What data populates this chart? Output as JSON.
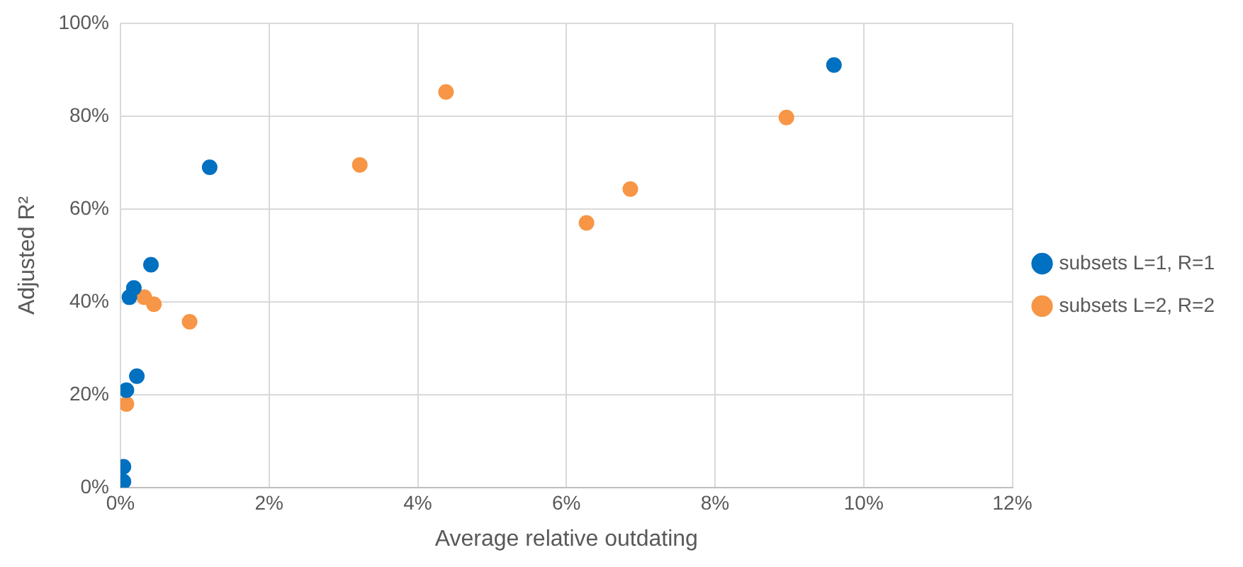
{
  "chart_data": {
    "type": "scatter",
    "xlabel": "Average relative outdating",
    "ylabel": "Adjusted R²",
    "xlim": [
      0,
      12
    ],
    "xticks": [
      {
        "value": 0,
        "label": "0%"
      },
      {
        "value": 2,
        "label": "2%"
      },
      {
        "value": 4,
        "label": "4%"
      },
      {
        "value": 6,
        "label": "6%"
      },
      {
        "value": 8,
        "label": "8%"
      },
      {
        "value": 10,
        "label": "10%"
      },
      {
        "value": 12,
        "label": "12%"
      }
    ],
    "ylim": [
      0,
      100
    ],
    "yticks": [
      {
        "value": 0,
        "label": "0%"
      },
      {
        "value": 20,
        "label": "20%"
      },
      {
        "value": 40,
        "label": "40%"
      },
      {
        "value": 60,
        "label": "60%"
      },
      {
        "value": 80,
        "label": "80%"
      },
      {
        "value": 100,
        "label": "100%"
      }
    ],
    "grid": true,
    "legend": "right",
    "marker": "circle",
    "series": [
      {
        "name": "subsets L=1, R=1",
        "color": "#0070c0",
        "x": [
          0.04,
          0.04,
          0.08,
          0.12,
          0.18,
          0.22,
          0.41,
          1.2,
          9.6
        ],
        "values": [
          4.5,
          1.3,
          21,
          41,
          43,
          24,
          48,
          69,
          91
        ]
      },
      {
        "name": "subsets L=2, R=2",
        "color": "#f79646",
        "x": [
          0.08,
          0.32,
          0.45,
          0.93,
          3.22,
          4.38,
          6.27,
          6.86,
          8.96
        ],
        "values": [
          18,
          41,
          39.5,
          35.7,
          69.5,
          85.2,
          57,
          64.3,
          79.7
        ]
      }
    ]
  }
}
